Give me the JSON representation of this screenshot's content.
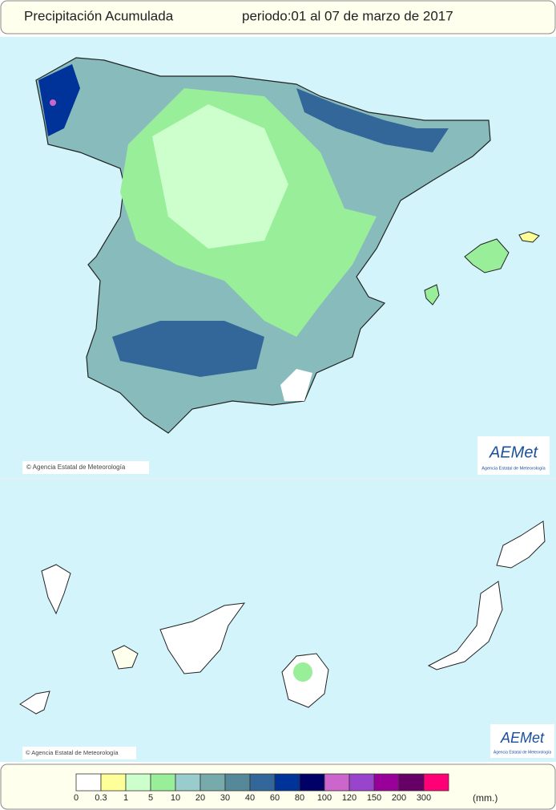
{
  "header": {
    "title": "Precipitación Acumulada",
    "period": "periodo:01 al 07 de marzo de 2017"
  },
  "map": {
    "notices": [
      "© Agencia Estatal de Meteorología",
      "© Agencia Estatal de Meteorología"
    ],
    "logo": {
      "name": "AEMet",
      "subtitle": "Agencia Estatal de Meteorología"
    }
  },
  "legend": {
    "thresholds": [
      0,
      0.3,
      1,
      5,
      10,
      20,
      30,
      40,
      60,
      80,
      100,
      120,
      150,
      200,
      300
    ],
    "colors": [
      "#ffffff",
      "#ffff99",
      "#ccffcc",
      "#99ee99",
      "#99cccc",
      "#77aaaa",
      "#558899",
      "#336699",
      "#003399",
      "#000066",
      "#cc66cc",
      "#9944cc",
      "#990099",
      "#660066",
      "#ff0077"
    ],
    "unit": "(mm.)"
  }
}
